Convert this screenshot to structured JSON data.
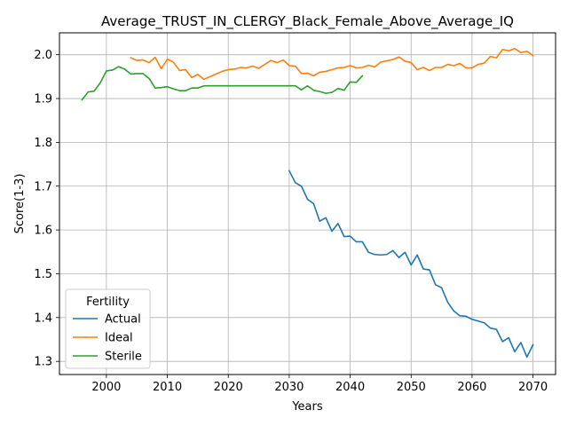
{
  "chart_data": {
    "type": "line",
    "title": "Average_TRUST_IN_CLERGY_Black_Female_Above_Average_IQ",
    "xlabel": "Years",
    "ylabel": "Score(1-3)",
    "xlim": [
      1992.3,
      2073.7
    ],
    "ylim": [
      1.27,
      2.05
    ],
    "xticks": [
      2000,
      2010,
      2020,
      2030,
      2040,
      2050,
      2060,
      2070
    ],
    "yticks": [
      1.3,
      1.4,
      1.5,
      1.6,
      1.7,
      1.8,
      1.9,
      2.0
    ],
    "xtick_labels": [
      "2000",
      "2010",
      "2020",
      "2030",
      "2040",
      "2050",
      "2060",
      "2070"
    ],
    "ytick_labels": [
      "1.3",
      "1.4",
      "1.5",
      "1.6",
      "1.7",
      "1.8",
      "1.9",
      "2.0"
    ],
    "grid": true,
    "legend": {
      "title": "Fertility",
      "position": "lower-left"
    },
    "series": [
      {
        "name": "Actual",
        "color": "#1f77b4",
        "x": [
          2030,
          2031,
          2032,
          2033,
          2034,
          2035,
          2036,
          2037,
          2038,
          2039,
          2040,
          2041,
          2042,
          2043,
          2044,
          2045,
          2046,
          2047,
          2048,
          2049,
          2050,
          2051,
          2052,
          2053,
          2054,
          2055,
          2056,
          2057,
          2058,
          2059,
          2060,
          2061,
          2062,
          2063,
          2064,
          2065,
          2066,
          2067,
          2068,
          2069,
          2070
        ],
        "y": [
          1.735,
          1.708,
          1.7,
          1.67,
          1.66,
          1.62,
          1.628,
          1.597,
          1.615,
          1.585,
          1.586,
          1.573,
          1.573,
          1.549,
          1.544,
          1.543,
          1.544,
          1.553,
          1.537,
          1.549,
          1.52,
          1.543,
          1.511,
          1.509,
          1.475,
          1.468,
          1.435,
          1.415,
          1.404,
          1.403,
          1.396,
          1.392,
          1.388,
          1.376,
          1.373,
          1.345,
          1.354,
          1.322,
          1.343,
          1.31,
          1.338
        ]
      },
      {
        "name": "Ideal",
        "color": "#ff7f0e",
        "x": [
          2004,
          2005,
          2006,
          2007,
          2008,
          2009,
          2010,
          2011,
          2012,
          2013,
          2014,
          2015,
          2016,
          2017,
          2018,
          2019,
          2020,
          2021,
          2022,
          2023,
          2024,
          2025,
          2026,
          2027,
          2028,
          2029,
          2030,
          2031,
          2032,
          2033,
          2034,
          2035,
          2036,
          2037,
          2038,
          2039,
          2040,
          2041,
          2042,
          2043,
          2044,
          2045,
          2046,
          2047,
          2048,
          2049,
          2050,
          2051,
          2052,
          2053,
          2054,
          2055,
          2056,
          2057,
          2058,
          2059,
          2060,
          2061,
          2062,
          2063,
          2064,
          2065,
          2066,
          2067,
          2068,
          2069,
          2070
        ],
        "y": [
          1.993,
          1.987,
          1.988,
          1.982,
          1.994,
          1.968,
          1.99,
          1.983,
          1.964,
          1.966,
          1.948,
          1.955,
          1.944,
          1.95,
          1.956,
          1.962,
          1.966,
          1.967,
          1.971,
          1.97,
          1.974,
          1.969,
          1.978,
          1.987,
          1.982,
          1.988,
          1.975,
          1.974,
          1.957,
          1.958,
          1.952,
          1.96,
          1.962,
          1.966,
          1.97,
          1.971,
          1.975,
          1.97,
          1.971,
          1.976,
          1.972,
          1.983,
          1.986,
          1.989,
          1.995,
          1.985,
          1.982,
          1.966,
          1.971,
          1.964,
          1.971,
          1.971,
          1.978,
          1.975,
          1.98,
          1.97,
          1.97,
          1.978,
          1.981,
          1.996,
          1.993,
          2.012,
          2.009,
          2.014,
          2.005,
          2.008,
          1.998
        ]
      },
      {
        "name": "Sterile",
        "color": "#2ca02c",
        "x": [
          1996,
          1997,
          1998,
          1999,
          2000,
          2001,
          2002,
          2003,
          2004,
          2005,
          2006,
          2007,
          2008,
          2009,
          2010,
          2011,
          2012,
          2013,
          2014,
          2015,
          2016,
          2017,
          2018,
          2019,
          2020,
          2021,
          2022,
          2023,
          2024,
          2025,
          2026,
          2027,
          2028,
          2029,
          2030,
          2031,
          2032,
          2033,
          2034,
          2035,
          2036,
          2037,
          2038,
          2039,
          2040,
          2041,
          2042
        ],
        "y": [
          1.897,
          1.915,
          1.917,
          1.936,
          1.963,
          1.965,
          1.973,
          1.967,
          1.956,
          1.957,
          1.957,
          1.946,
          1.924,
          1.925,
          1.927,
          1.922,
          1.918,
          1.918,
          1.924,
          1.924,
          1.929,
          1.929,
          1.929,
          1.929,
          1.929,
          1.929,
          1.929,
          1.929,
          1.929,
          1.929,
          1.929,
          1.929,
          1.929,
          1.929,
          1.929,
          1.929,
          1.92,
          1.929,
          1.919,
          1.916,
          1.912,
          1.914,
          1.923,
          1.919,
          1.938,
          1.937,
          1.952
        ]
      }
    ]
  }
}
